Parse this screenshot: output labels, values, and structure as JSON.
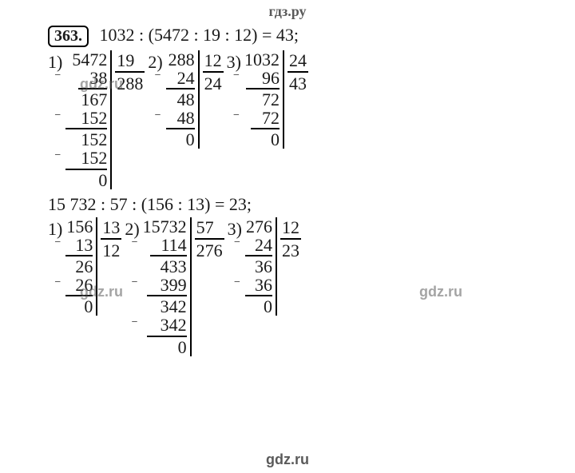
{
  "header": "гдз.ру",
  "footer": "gdz.ru",
  "watermarks": [
    "gdz.ru",
    "gdz.ru",
    "gdz.ru"
  ],
  "problem_number": "363.",
  "equations": {
    "eq1": "1032 : (5472 : 19 : 12) = 43;",
    "eq2": "15 732 : 57 : (156 : 13) = 23;"
  },
  "labels": {
    "s1": "1)",
    "s2": "2)",
    "s3": "3)"
  },
  "set1": {
    "d1": {
      "divisor": "19",
      "quotient": "288",
      "lines": [
        "5472",
        "38",
        "167",
        "152",
        "152",
        "152",
        "0"
      ],
      "hr_widths": [
        36,
        52,
        52,
        20
      ],
      "sub_idx": [
        1,
        3,
        5
      ]
    },
    "d2": {
      "divisor": "12",
      "quotient": "24",
      "lines": [
        "288",
        "24",
        "48",
        "48",
        "0"
      ],
      "hr_widths": [
        36,
        36,
        20
      ],
      "sub_idx": [
        1,
        3
      ]
    },
    "d3": {
      "divisor": "24",
      "quotient": "43",
      "lines": [
        "1032",
        "96",
        "72",
        "72",
        "0"
      ],
      "hr_widths": [
        42,
        36,
        20
      ],
      "sub_idx": [
        1,
        3
      ]
    }
  },
  "set2": {
    "d1": {
      "divisor": "13",
      "quotient": "12",
      "lines": [
        "156",
        "13",
        "26",
        "26",
        "0"
      ],
      "hr_widths": [
        34,
        34,
        20
      ],
      "sub_idx": [
        1,
        3
      ]
    },
    "d2": {
      "divisor": "57",
      "quotient": "276",
      "lines": [
        "15732",
        "114",
        "433",
        "399",
        "342",
        "342",
        "0"
      ],
      "hr_widths": [
        46,
        50,
        50,
        20
      ],
      "sub_idx": [
        1,
        3,
        5
      ]
    },
    "d3": {
      "divisor": "12",
      "quotient": "23",
      "lines": [
        "276",
        "24",
        "36",
        "36",
        "0"
      ],
      "hr_widths": [
        34,
        34,
        20
      ],
      "sub_idx": [
        1,
        3
      ]
    }
  },
  "colors": {
    "text": "#1a1a1a",
    "bg": "#ffffff",
    "wm": "#808080"
  }
}
